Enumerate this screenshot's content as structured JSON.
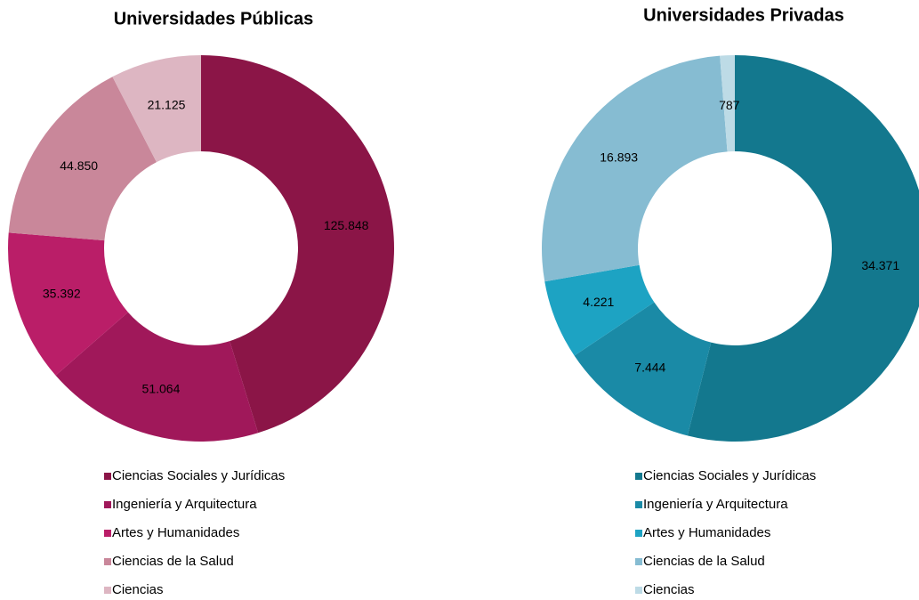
{
  "chart_data": [
    {
      "type": "donut",
      "title": "Universidades Públicas",
      "categories": [
        "Ciencias Sociales y Jurídicas",
        "Ingeniería y Arquitectura",
        "Artes y Humanidades",
        "Ciencias de la Salud",
        "Ciencias"
      ],
      "values": [
        125848,
        51064,
        35392,
        44850,
        21125
      ],
      "value_labels": [
        "125.848",
        "51.064",
        "35.392",
        "44.850",
        "21.125"
      ],
      "colors": [
        "#8b1547",
        "#a0185a",
        "#ba1e68",
        "#c9879a",
        "#ddb6c2"
      ]
    },
    {
      "type": "donut",
      "title": "Universidades Privadas",
      "categories": [
        "Ciencias Sociales y Jurídicas",
        "Ingeniería y Arquitectura",
        "Artes y Humanidades",
        "Ciencias de la Salud",
        "Ciencias"
      ],
      "values": [
        34371,
        7444,
        4221,
        16893,
        787
      ],
      "value_labels": [
        "34.371",
        "7.444",
        "4.221",
        "16.893",
        "787"
      ],
      "colors": [
        "#13788e",
        "#1a8aa6",
        "#1da3c3",
        "#86bcd2",
        "#bddbe6"
      ]
    }
  ]
}
